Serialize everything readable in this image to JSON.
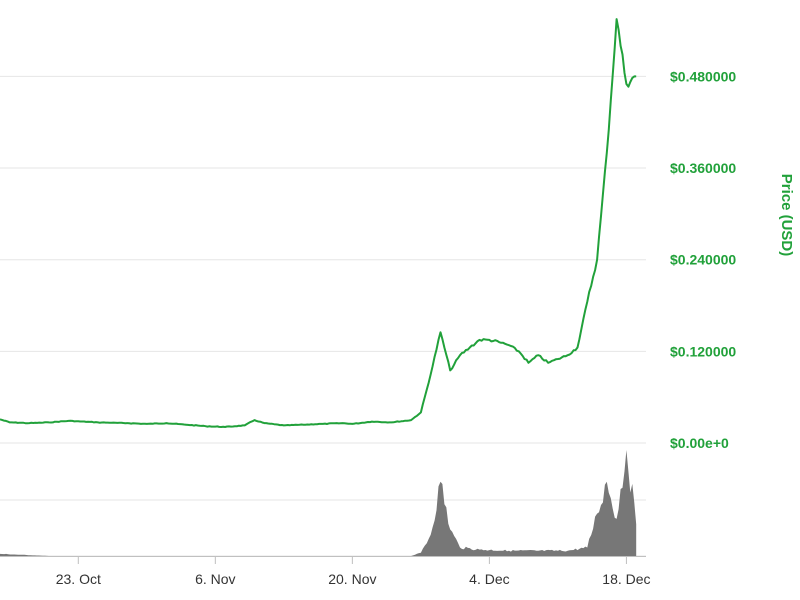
{
  "chart_data": {
    "type": "line",
    "title": "",
    "xlabel": "",
    "ylabel": "Price (USD)",
    "x_range": [
      "2017-10-15",
      "2017-12-20"
    ],
    "ylim": [
      0,
      0.58
    ],
    "y_ticks": [
      {
        "value": 0,
        "label": "$0.00e+0"
      },
      {
        "value": 0.12,
        "label": "$0.120000"
      },
      {
        "value": 0.24,
        "label": "$0.240000"
      },
      {
        "value": 0.36,
        "label": "$0.360000"
      },
      {
        "value": 0.48,
        "label": "$0.480000"
      }
    ],
    "x_ticks": [
      {
        "date": "2017-10-23",
        "label": "23. Oct"
      },
      {
        "date": "2017-11-06",
        "label": "6. Nov"
      },
      {
        "date": "2017-11-20",
        "label": "20. Nov"
      },
      {
        "date": "2017-12-04",
        "label": "4. Dec"
      },
      {
        "date": "2017-12-18",
        "label": "18. Dec"
      }
    ],
    "grid": true,
    "series": [
      {
        "color": "#21a13a",
        "points": [
          [
            "2017-10-15",
            0.031
          ],
          [
            "2017-10-16",
            0.027
          ],
          [
            "2017-10-18",
            0.026
          ],
          [
            "2017-10-20",
            0.027
          ],
          [
            "2017-10-22",
            0.029
          ],
          [
            "2017-10-25",
            0.027
          ],
          [
            "2017-10-28",
            0.026
          ],
          [
            "2017-10-30",
            0.025
          ],
          [
            "2017-11-01",
            0.026
          ],
          [
            "2017-11-03",
            0.024
          ],
          [
            "2017-11-05",
            0.022
          ],
          [
            "2017-11-07",
            0.021
          ],
          [
            "2017-11-09",
            0.023
          ],
          [
            "2017-11-10",
            0.03
          ],
          [
            "2017-11-11",
            0.026
          ],
          [
            "2017-11-13",
            0.023
          ],
          [
            "2017-11-15",
            0.024
          ],
          [
            "2017-11-17",
            0.025
          ],
          [
            "2017-11-19",
            0.026
          ],
          [
            "2017-11-20",
            0.025
          ],
          [
            "2017-11-22",
            0.028
          ],
          [
            "2017-11-24",
            0.027
          ],
          [
            "2017-11-26",
            0.03
          ],
          [
            "2017-11-27",
            0.04
          ],
          [
            "2017-11-28",
            0.09
          ],
          [
            "2017-11-29",
            0.145
          ],
          [
            "2017-11-30",
            0.095
          ],
          [
            "2017-12-01",
            0.115
          ],
          [
            "2017-12-02",
            0.125
          ],
          [
            "2017-12-03",
            0.135
          ],
          [
            "2017-12-04",
            0.135
          ],
          [
            "2017-12-05",
            0.132
          ],
          [
            "2017-12-06",
            0.128
          ],
          [
            "2017-12-07",
            0.12
          ],
          [
            "2017-12-08",
            0.105
          ],
          [
            "2017-12-09",
            0.115
          ],
          [
            "2017-12-10",
            0.105
          ],
          [
            "2017-12-11",
            0.11
          ],
          [
            "2017-12-12",
            0.115
          ],
          [
            "2017-12-13",
            0.125
          ],
          [
            "2017-12-14",
            0.185
          ],
          [
            "2017-12-15",
            0.24
          ],
          [
            "2017-12-16",
            0.38
          ],
          [
            "2017-12-17",
            0.555
          ],
          [
            "2017-12-18",
            0.47
          ],
          [
            "2017-12-19",
            0.48
          ]
        ]
      }
    ],
    "volume": {
      "color": "#777777",
      "points": [
        [
          "2017-10-15",
          0.02
        ],
        [
          "2017-10-20",
          0.0
        ],
        [
          "2017-11-26",
          0.0
        ],
        [
          "2017-11-27",
          0.03
        ],
        [
          "2017-11-28",
          0.2
        ],
        [
          "2017-11-29",
          0.7
        ],
        [
          "2017-11-30",
          0.25
        ],
        [
          "2017-12-01",
          0.08
        ],
        [
          "2017-12-03",
          0.06
        ],
        [
          "2017-12-06",
          0.05
        ],
        [
          "2017-12-09",
          0.05
        ],
        [
          "2017-12-12",
          0.05
        ],
        [
          "2017-12-14",
          0.08
        ],
        [
          "2017-12-15",
          0.4
        ],
        [
          "2017-12-16",
          0.7
        ],
        [
          "2017-12-17",
          0.35
        ],
        [
          "2017-12-18",
          1.0
        ],
        [
          "2017-12-19",
          0.3
        ]
      ]
    }
  },
  "colors": {
    "accent": "#21a13a",
    "grid": "#e6e6e6",
    "volume": "#777777",
    "axis_text": "#333333"
  }
}
